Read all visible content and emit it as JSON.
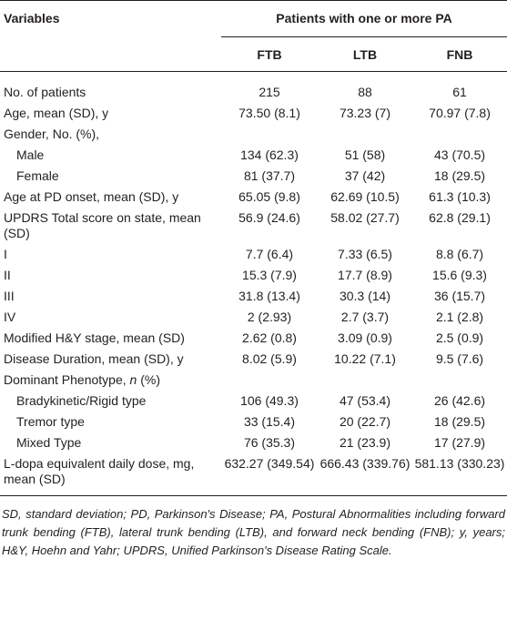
{
  "table": {
    "header": {
      "variables_label": "Variables",
      "group_label": "Patients with one or more PA",
      "columns": [
        "FTB",
        "LTB",
        "FNB"
      ]
    },
    "rows": [
      {
        "label": "No. of patients",
        "indent": false,
        "values": [
          "215",
          "88",
          "61"
        ]
      },
      {
        "label": "Age, mean (SD), y",
        "indent": false,
        "values": [
          "73.50 (8.1)",
          "73.23 (7)",
          "70.97 (7.8)"
        ]
      },
      {
        "label": "Gender, No. (%),",
        "indent": false,
        "values": [
          "",
          "",
          ""
        ]
      },
      {
        "label": "Male",
        "indent": true,
        "values": [
          "134 (62.3)",
          "51 (58)",
          "43 (70.5)"
        ]
      },
      {
        "label": "Female",
        "indent": true,
        "values": [
          "81 (37.7)",
          "37 (42)",
          "18 (29.5)"
        ]
      },
      {
        "label": "Age at PD onset, mean (SD), y",
        "indent": false,
        "values": [
          "65.05 (9.8)",
          "62.69 (10.5)",
          "61.3 (10.3)"
        ]
      },
      {
        "label": "UPDRS Total score on state, mean (SD)",
        "indent": false,
        "values": [
          "56.9 (24.6)",
          "58.02 (27.7)",
          "62.8 (29.1)"
        ]
      },
      {
        "label": "I",
        "indent": false,
        "values": [
          "7.7 (6.4)",
          "7.33 (6.5)",
          "8.8 (6.7)"
        ]
      },
      {
        "label": "II",
        "indent": false,
        "values": [
          "15.3 (7.9)",
          "17.7 (8.9)",
          "15.6 (9.3)"
        ]
      },
      {
        "label": "III",
        "indent": false,
        "values": [
          "31.8 (13.4)",
          "30.3 (14)",
          "36 (15.7)"
        ]
      },
      {
        "label": "IV",
        "indent": false,
        "values": [
          "2 (2.93)",
          "2.7 (3.7)",
          "2.1 (2.8)"
        ]
      },
      {
        "label": "Modified H&Y stage, mean (SD)",
        "indent": false,
        "values": [
          "2.62 (0.8)",
          "3.09 (0.9)",
          "2.5 (0.9)"
        ]
      },
      {
        "label": "Disease Duration, mean (SD), y",
        "indent": false,
        "values": [
          "8.02 (5.9)",
          "10.22 (7.1)",
          "9.5 (7.6)"
        ]
      },
      {
        "label_pre": "Dominant Phenotype, ",
        "label_em": "n",
        "label_post": " (%)",
        "indent": false,
        "values": [
          "",
          "",
          ""
        ]
      },
      {
        "label": "Bradykinetic/Rigid type",
        "indent": true,
        "values": [
          "106 (49.3)",
          "47 (53.4)",
          "26 (42.6)"
        ]
      },
      {
        "label": "Tremor type",
        "indent": true,
        "values": [
          "33 (15.4)",
          "20 (22.7)",
          "18 (29.5)"
        ]
      },
      {
        "label": "Mixed Type",
        "indent": true,
        "values": [
          "76 (35.3)",
          "21 (23.9)",
          "17 (27.9)"
        ]
      },
      {
        "label": "L-dopa equivalent daily dose, mg, mean (SD)",
        "indent": false,
        "values": [
          "632.27 (349.54)",
          "666.43 (339.76)",
          "581.13 (330.23)"
        ]
      }
    ]
  },
  "footnote": "SD, standard deviation; PD, Parkinson's Disease; PA, Postural Abnormalities including forward trunk bending (FTB), lateral trunk bending (LTB), and forward neck bending (FNB); y, years; H&Y, Hoehn and Yahr; UPDRS, Unified Parkinson's Disease Rating Scale."
}
